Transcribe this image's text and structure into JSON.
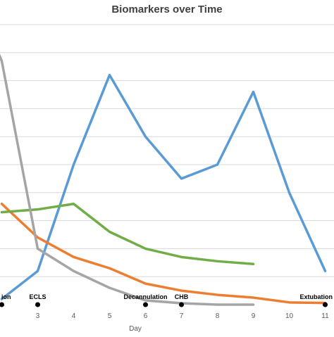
{
  "chart_data": {
    "type": "line",
    "title": "Biomarkers over Time",
    "xlabel": "Day",
    "ylabel": "",
    "x": [
      2,
      3,
      4,
      5,
      6,
      7,
      8,
      9,
      10,
      11
    ],
    "x_tick_labels": [
      "3",
      "4",
      "5",
      "6",
      "7",
      "8",
      "9",
      "10",
      "11"
    ],
    "xlim": [
      2,
      11.5
    ],
    "ylim": [
      0,
      10
    ],
    "grid": "horizontal",
    "legend": "none",
    "series": [
      {
        "color": "#5b9bd5",
        "values": [
          0.2,
          1.2,
          5.0,
          8.2,
          6.0,
          4.5,
          5.0,
          7.6,
          4.0,
          1.2
        ]
      },
      {
        "color": "#ed7d31",
        "values": [
          3.6,
          2.4,
          1.7,
          1.3,
          0.75,
          0.5,
          0.35,
          0.25,
          0.08,
          0.06
        ]
      },
      {
        "color": "#a5a5a5",
        "values": [
          null,
          2.0,
          1.2,
          0.6,
          0.15,
          0.05,
          0.0,
          0.0,
          null,
          null
        ]
      },
      {
        "color": "#70ad47",
        "values": [
          3.3,
          3.4,
          3.6,
          2.6,
          2.0,
          1.7,
          1.55,
          1.45,
          null,
          null
        ]
      }
    ],
    "gray_series_early": {
      "x": [
        1.9,
        2.0
      ],
      "values": [
        9.0,
        8.7
      ]
    },
    "events": [
      {
        "label": "ion",
        "x": 2.0
      },
      {
        "label": "ECLS",
        "x": 3.0
      },
      {
        "label": "Decannulation",
        "x": 6.0
      },
      {
        "label": "CHB",
        "x": 7.0
      },
      {
        "label": "Extubation",
        "x": 11.0
      }
    ]
  }
}
